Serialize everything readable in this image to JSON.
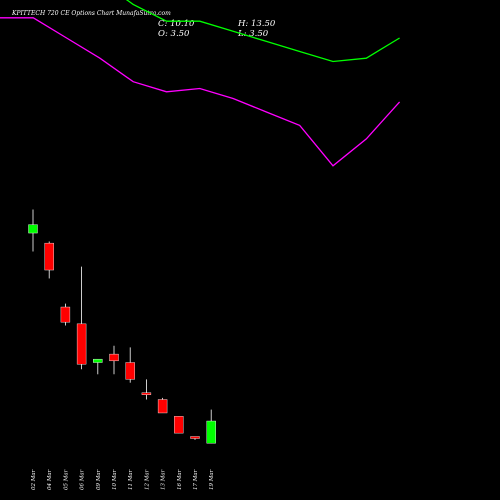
{
  "header": {
    "title": "KPITTECH 720  CE Options  Chart MunafaSutra.com",
    "close_label": "C: 10.10",
    "high_label": "H: 13.50",
    "open_label": "O: 3.50",
    "low_label": "L: 3.50"
  },
  "chart_data": {
    "type": "candlestick",
    "ylim": [
      0,
      113
    ],
    "dates": [
      "02 Mar",
      "04 Mar",
      "05 Mar",
      "06 Mar",
      "09 Mar",
      "10 Mar",
      "11 Mar",
      "12 Mar",
      "13 Mar",
      "16 Mar",
      "17 Mar",
      "19 Mar"
    ],
    "candles": [
      {
        "open": 66.0,
        "high": 73.0,
        "low": 60.5,
        "close": 68.5
      },
      {
        "open": 63.0,
        "high": 63.5,
        "low": 52.5,
        "close": 55.0
      },
      {
        "open": 44.0,
        "high": 45.0,
        "low": 38.5,
        "close": 39.5
      },
      {
        "open": 39.0,
        "high": 56.0,
        "low": 25.5,
        "close": 27.0
      },
      {
        "open": 27.5,
        "high": 28.5,
        "low": 24.0,
        "close": 28.5
      },
      {
        "open": 30.0,
        "high": 32.5,
        "low": 24.0,
        "close": 28.0
      },
      {
        "open": 27.5,
        "high": 32.0,
        "low": 21.5,
        "close": 22.5
      },
      {
        "open": 18.5,
        "high": 22.5,
        "low": 16.5,
        "close": 18.0
      },
      {
        "open": 16.5,
        "high": 17.0,
        "low": 12.5,
        "close": 12.5
      },
      {
        "open": 11.5,
        "high": 11.5,
        "low": 6.5,
        "close": 6.5
      },
      {
        "open": 5.5,
        "high": 5.5,
        "low": 4.5,
        "close": 5.0
      },
      {
        "open": 3.5,
        "high": 13.5,
        "low": 3.5,
        "close": 10.1
      }
    ],
    "overlay_lines": [
      {
        "color": "#00ff00",
        "values": [
          160,
          160,
          152,
          141,
          134,
          129,
          129,
          126,
          123,
          120,
          117,
          118,
          124
        ]
      },
      {
        "color": "#ff00ff",
        "values": [
          130,
          130,
          124,
          118,
          111,
          108,
          109,
          106,
          102,
          98,
          86,
          94,
          105
        ]
      }
    ],
    "colors": {
      "up": "#00ff00",
      "down": "#ff0000",
      "wick": "#ffffff",
      "background": "#000000"
    }
  }
}
